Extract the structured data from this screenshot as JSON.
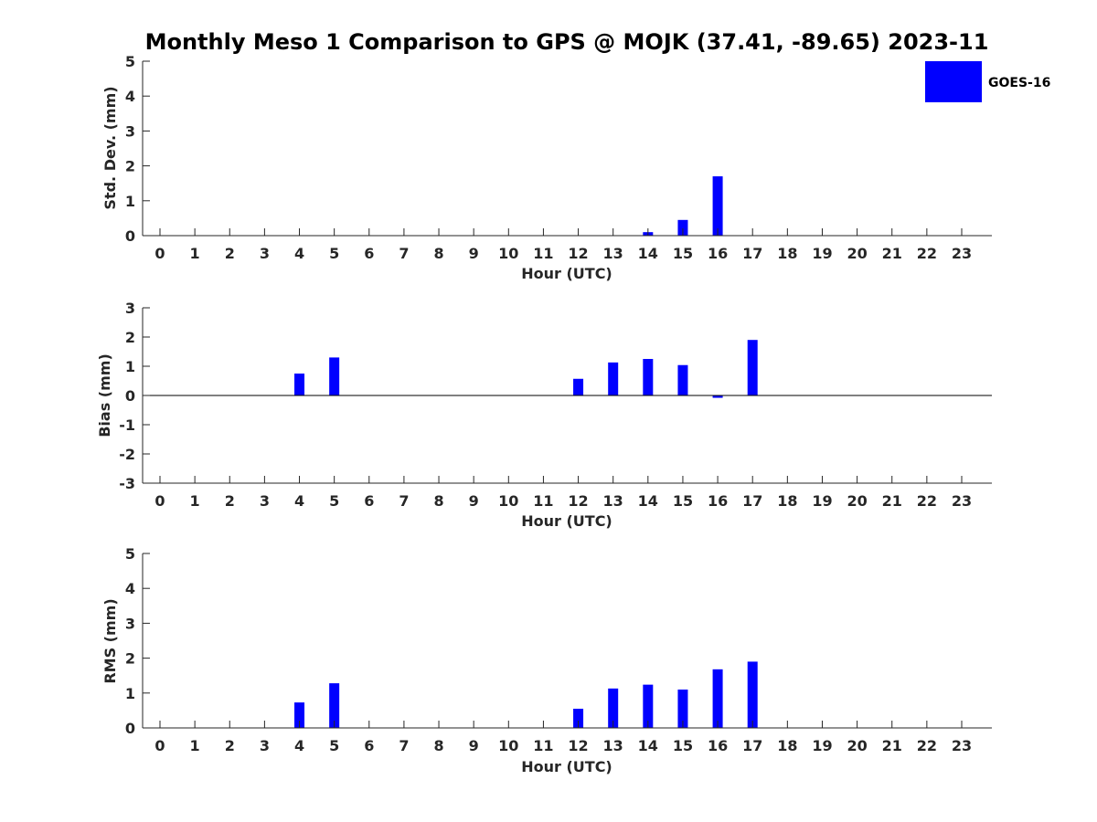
{
  "title": "Monthly Meso 1 Comparison to GPS @ MOJK (37.41, -89.65) 2023-11",
  "legend": {
    "label": "GOES-16",
    "color": "#0000ff",
    "placement": "top-right"
  },
  "colors": {
    "bar": "#0000ff",
    "axis": "#262626"
  },
  "chart_data": [
    {
      "type": "bar",
      "xlabel": "Hour (UTC)",
      "ylabel": "Std. Dev. (mm)",
      "ylim": [
        0,
        5
      ],
      "yticks": [
        "0",
        "1",
        "2",
        "3",
        "4",
        "5"
      ],
      "categories": [
        "0",
        "1",
        "2",
        "3",
        "4",
        "5",
        "6",
        "7",
        "8",
        "9",
        "10",
        "11",
        "12",
        "13",
        "14",
        "15",
        "16",
        "17",
        "18",
        "19",
        "20",
        "21",
        "22",
        "23"
      ],
      "series": [
        {
          "name": "GOES-16",
          "values": [
            null,
            null,
            null,
            null,
            null,
            null,
            null,
            null,
            null,
            null,
            null,
            null,
            null,
            null,
            0.1,
            0.45,
            1.7,
            null,
            null,
            null,
            null,
            null,
            null,
            null
          ]
        }
      ],
      "zero_line": false
    },
    {
      "type": "bar",
      "xlabel": "Hour (UTC)",
      "ylabel": "Bias (mm)",
      "ylim": [
        -3,
        3
      ],
      "yticks": [
        "-3",
        "-2",
        "-1",
        "0",
        "1",
        "2",
        "3"
      ],
      "categories": [
        "0",
        "1",
        "2",
        "3",
        "4",
        "5",
        "6",
        "7",
        "8",
        "9",
        "10",
        "11",
        "12",
        "13",
        "14",
        "15",
        "16",
        "17",
        "18",
        "19",
        "20",
        "21",
        "22",
        "23"
      ],
      "series": [
        {
          "name": "GOES-16",
          "values": [
            null,
            null,
            null,
            null,
            0.75,
            1.3,
            null,
            null,
            null,
            null,
            null,
            null,
            0.57,
            1.13,
            1.25,
            1.04,
            -0.08,
            1.9,
            null,
            null,
            null,
            null,
            null,
            null
          ]
        }
      ],
      "zero_line": true
    },
    {
      "type": "bar",
      "xlabel": "Hour (UTC)",
      "ylabel": "RMS (mm)",
      "ylim": [
        0,
        5
      ],
      "yticks": [
        "0",
        "1",
        "2",
        "3",
        "4",
        "5"
      ],
      "categories": [
        "0",
        "1",
        "2",
        "3",
        "4",
        "5",
        "6",
        "7",
        "8",
        "9",
        "10",
        "11",
        "12",
        "13",
        "14",
        "15",
        "16",
        "17",
        "18",
        "19",
        "20",
        "21",
        "22",
        "23"
      ],
      "series": [
        {
          "name": "GOES-16",
          "values": [
            null,
            null,
            null,
            null,
            0.73,
            1.28,
            null,
            null,
            null,
            null,
            null,
            null,
            0.55,
            1.13,
            1.24,
            1.1,
            1.68,
            1.9,
            null,
            null,
            null,
            null,
            null,
            null
          ]
        }
      ],
      "zero_line": false
    }
  ]
}
